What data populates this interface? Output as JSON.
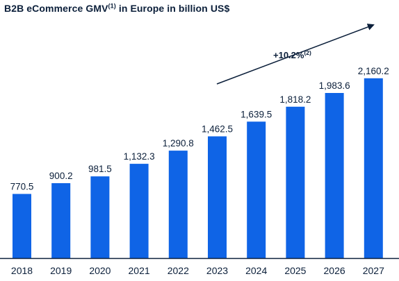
{
  "title": {
    "main": "B2B eCommerce GMV",
    "superscript": "(1)",
    "rest": " in Europe in billion US$"
  },
  "cagr": {
    "label": "+10.2%",
    "superscript": "(2)"
  },
  "chart_data": {
    "type": "bar",
    "title": "B2B eCommerce GMV(1) in Europe in billion US$",
    "categories": [
      "2018",
      "2019",
      "2020",
      "2021",
      "2022",
      "2023",
      "2024",
      "2025",
      "2026",
      "2027"
    ],
    "values": [
      770.5,
      900.2,
      981.5,
      1132.3,
      1290.8,
      1462.5,
      1639.5,
      1818.2,
      1983.6,
      2160.2
    ],
    "value_labels": [
      "770.5",
      "900.2",
      "981.5",
      "1,132.3",
      "1,290.8",
      "1,462.5",
      "1,639.5",
      "1,818.2",
      "1,983.6",
      "2,160.2"
    ],
    "xlabel": "",
    "ylabel": "",
    "ylim": [
      0,
      2300
    ],
    "grid": false,
    "legend": "none",
    "colors": {
      "bar": "#0f64e6",
      "text": "#0b1f3a",
      "axis": "#0b1f3a"
    },
    "annotation": {
      "text": "+10.2%(2)",
      "kind": "arrow"
    }
  }
}
